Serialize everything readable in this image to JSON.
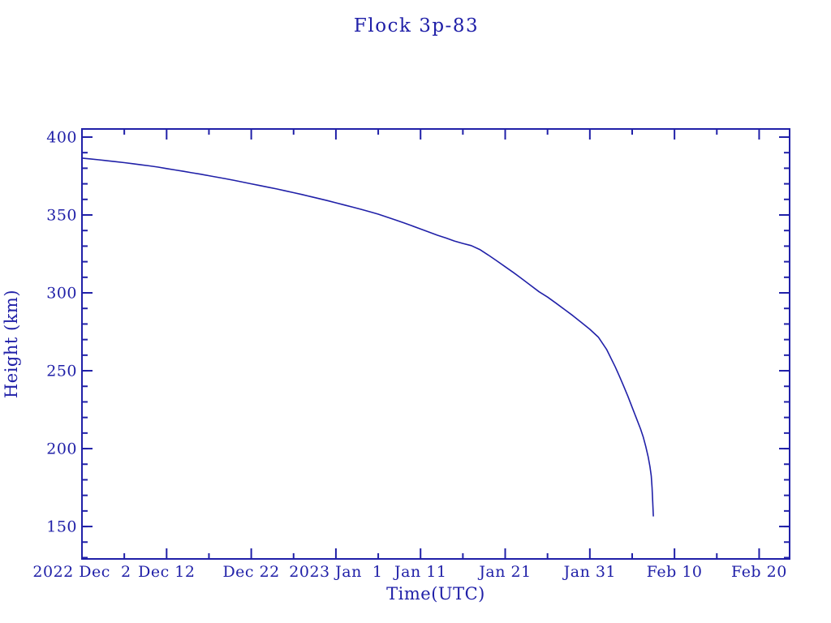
{
  "page": {
    "background": "#ffffff"
  },
  "colors": {
    "ink": "#2020a8"
  },
  "chart_data": {
    "type": "line",
    "title": "Flock 3p-83",
    "xlabel": "Time(UTC)",
    "ylabel": "Height (km)",
    "grid": false,
    "legend": "none",
    "x_axis": {
      "x_unit": "days after 2022 Dec 2 00:00 UTC",
      "range_days": [
        0,
        83.6
      ],
      "major_tick_days": [
        0,
        10,
        20,
        30,
        40,
        50,
        60,
        70,
        80
      ],
      "major_tick_labels": [
        "2022 Dec  2",
        "Dec 12",
        "Dec 22",
        "2023 Jan  1",
        "Jan 11",
        "Jan 21",
        "Jan 31",
        "Feb 10",
        "Feb 20"
      ],
      "minor_tick_days": [
        5,
        15,
        25,
        35,
        45,
        55,
        65,
        75
      ]
    },
    "y_axis": {
      "range": [
        129.2,
        405.2
      ],
      "major_ticks": [
        150,
        200,
        250,
        300,
        350,
        400
      ],
      "minor_step": 10
    },
    "series": [
      {
        "name": "Flock 3p-83 orbital height",
        "color": "#2020a8",
        "points": [
          [
            0,
            386.5
          ],
          [
            1,
            386.0
          ],
          [
            2,
            385.4
          ],
          [
            3,
            384.8
          ],
          [
            4,
            384.2
          ],
          [
            5,
            383.6
          ],
          [
            6,
            382.9
          ],
          [
            7,
            382.2
          ],
          [
            8,
            381.5
          ],
          [
            9,
            380.7
          ],
          [
            10,
            379.8
          ],
          [
            11,
            378.9
          ],
          [
            12,
            378.0
          ],
          [
            13,
            377.1
          ],
          [
            14,
            376.2
          ],
          [
            15,
            375.2
          ],
          [
            16,
            374.2
          ],
          [
            17,
            373.2
          ],
          [
            18,
            372.2
          ],
          [
            19,
            371.1
          ],
          [
            20,
            370.0
          ],
          [
            21,
            368.9
          ],
          [
            22,
            367.8
          ],
          [
            23,
            366.7
          ],
          [
            24,
            365.5
          ],
          [
            25,
            364.3
          ],
          [
            26,
            363.1
          ],
          [
            27,
            361.8
          ],
          [
            28,
            360.5
          ],
          [
            29,
            359.2
          ],
          [
            30,
            357.8
          ],
          [
            31,
            356.4
          ],
          [
            32,
            355.0
          ],
          [
            33,
            353.6
          ],
          [
            34,
            352.1
          ],
          [
            35,
            350.5
          ],
          [
            36,
            348.7
          ],
          [
            37,
            346.9
          ],
          [
            38,
            345.0
          ],
          [
            39,
            343.0
          ],
          [
            40,
            341.0
          ],
          [
            41,
            339.0
          ],
          [
            42,
            337.0
          ],
          [
            43,
            335.2
          ],
          [
            44,
            333.3
          ],
          [
            45,
            331.7
          ],
          [
            46,
            330.3
          ],
          [
            47,
            327.8
          ],
          [
            48,
            324.3
          ],
          [
            49,
            320.6
          ],
          [
            50,
            316.8
          ],
          [
            51,
            312.9
          ],
          [
            52,
            308.9
          ],
          [
            53,
            304.8
          ],
          [
            54,
            300.7
          ],
          [
            55,
            297.3
          ],
          [
            56,
            293.4
          ],
          [
            57,
            289.4
          ],
          [
            58,
            285.3
          ],
          [
            59,
            281.0
          ],
          [
            60,
            276.6
          ],
          [
            61,
            271.6
          ],
          [
            62,
            263.5
          ],
          [
            63,
            252.5
          ],
          [
            63.5,
            246.5
          ],
          [
            64,
            240.0
          ],
          [
            64.5,
            233.5
          ],
          [
            65,
            226.5
          ],
          [
            65.5,
            219.5
          ],
          [
            66,
            212.5
          ],
          [
            66.3,
            207.5
          ],
          [
            66.6,
            201.5
          ],
          [
            66.9,
            194.5
          ],
          [
            67.1,
            188.5
          ],
          [
            67.25,
            182.5
          ],
          [
            67.35,
            175.0
          ],
          [
            67.43,
            166.0
          ],
          [
            67.5,
            156.5
          ]
        ]
      }
    ]
  }
}
